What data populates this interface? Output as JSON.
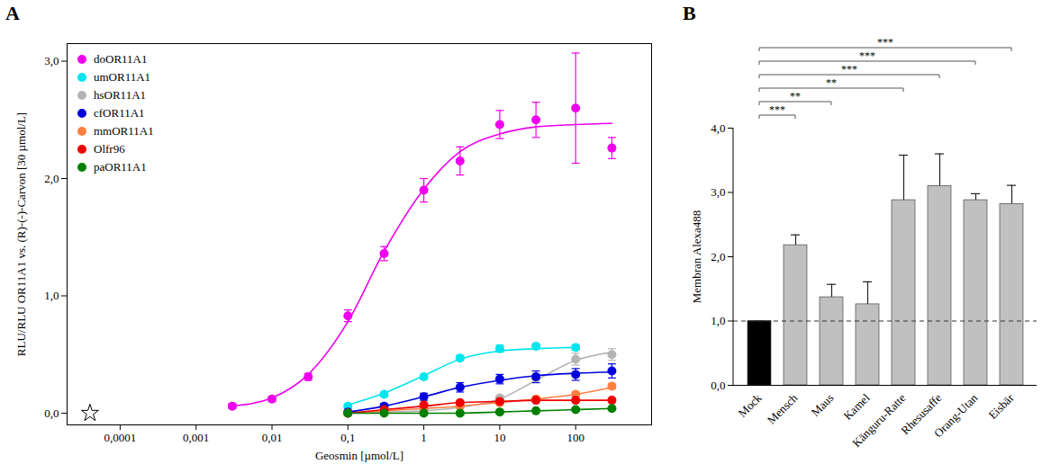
{
  "chart_data": [
    {
      "panel": "A",
      "type": "scatter",
      "line_style": "solid",
      "marker": "circle",
      "x_label": "Geosmin [µmol/L]",
      "y_label": "RLU/RLU OR11A1 vs. (R)-(-)-Carvon [30 µmol/L]",
      "log": "x",
      "grid": false,
      "legend": "top-left",
      "xlim": [
        2e-05,
        1000
      ],
      "xticks": [
        {
          "value": 0.0001,
          "label": "0,0001"
        },
        {
          "value": 0.001,
          "label": "0,001"
        },
        {
          "value": 0.01,
          "label": "0,01"
        },
        {
          "value": 0.1,
          "label": "0,1"
        },
        1,
        10,
        100
      ],
      "ylim": [
        -0.1,
        3.15
      ],
      "yticks": [
        {
          "value": 0,
          "label": "0,0"
        },
        {
          "value": 1,
          "label": "1,0"
        },
        {
          "value": 2,
          "label": "2,0"
        },
        {
          "value": 3,
          "label": "3,0"
        }
      ],
      "control": {
        "x": 4e-05,
        "y": 0,
        "marker": "star"
      },
      "series": [
        {
          "name": "doOR11A1",
          "color": "#ee00ee",
          "x": [
            0.003,
            0.01,
            0.03,
            0.1,
            0.3,
            1,
            3,
            10,
            30,
            100,
            300
          ],
          "values": [
            0.06,
            0.12,
            0.31,
            0.83,
            1.36,
            1.9,
            2.15,
            2.46,
            2.5,
            2.6,
            2.26
          ],
          "errors": [
            0.02,
            0.02,
            0.03,
            0.05,
            0.06,
            0.1,
            0.12,
            0.12,
            0.15,
            0.47,
            0.09
          ],
          "fit": [
            0.06,
            0.13,
            0.33,
            0.78,
            1.38,
            1.91,
            2.23,
            2.38,
            2.44,
            2.46,
            2.47
          ]
        },
        {
          "name": "umOR11A1",
          "color": "#00e5ee",
          "x": [
            0.1,
            0.3,
            1,
            3,
            10,
            30,
            100
          ],
          "values": [
            0.06,
            0.16,
            0.31,
            0.47,
            0.55,
            0.57,
            0.56
          ],
          "errors": [
            0.01,
            0.02,
            0.02,
            0.02,
            0.03,
            0.02,
            0.02
          ],
          "fit": [
            0.07,
            0.17,
            0.32,
            0.46,
            0.53,
            0.55,
            0.56
          ]
        },
        {
          "name": "hsOR11A1",
          "color": "#b4b4b4",
          "x": [
            0.1,
            0.3,
            1,
            3,
            10,
            30,
            100,
            300
          ],
          "values": [
            0.0,
            0.01,
            0.03,
            0.06,
            0.13,
            0.3,
            0.46,
            0.5
          ],
          "errors": [
            0.01,
            0.01,
            0.01,
            0.01,
            0.02,
            0.04,
            0.05,
            0.05
          ],
          "fit": [
            0.0,
            0.01,
            0.02,
            0.05,
            0.12,
            0.28,
            0.45,
            0.52
          ]
        },
        {
          "name": "cfOR11A1",
          "color": "#0000dd",
          "x": [
            0.1,
            0.3,
            1,
            3,
            10,
            30,
            100,
            300
          ],
          "values": [
            0.01,
            0.06,
            0.14,
            0.22,
            0.29,
            0.31,
            0.33,
            0.36
          ],
          "errors": [
            0.01,
            0.02,
            0.03,
            0.04,
            0.04,
            0.05,
            0.05,
            0.06
          ],
          "fit": [
            0.01,
            0.06,
            0.14,
            0.22,
            0.28,
            0.32,
            0.34,
            0.35
          ]
        },
        {
          "name": "mmOR11A1",
          "color": "#ff7f40",
          "x": [
            0.1,
            0.3,
            1,
            3,
            10,
            30,
            100,
            300
          ],
          "values": [
            0.0,
            0.02,
            0.04,
            0.06,
            0.09,
            0.12,
            0.16,
            0.23
          ],
          "errors": [
            0.01,
            0.01,
            0.01,
            0.01,
            0.01,
            0.02,
            0.02,
            0.02
          ],
          "fit": [
            0.0,
            0.02,
            0.04,
            0.06,
            0.09,
            0.12,
            0.16,
            0.22
          ]
        },
        {
          "name": "Olfr96",
          "color": "#ee0000",
          "x": [
            0.1,
            0.3,
            1,
            3,
            10,
            30,
            100,
            300
          ],
          "values": [
            0.0,
            0.03,
            0.07,
            0.09,
            0.1,
            0.11,
            0.11,
            0.11
          ],
          "errors": [
            0.01,
            0.01,
            0.01,
            0.01,
            0.01,
            0.01,
            0.01,
            0.01
          ],
          "fit": [
            0.0,
            0.03,
            0.06,
            0.09,
            0.1,
            0.11,
            0.11,
            0.11
          ]
        },
        {
          "name": "paOR11A1",
          "color": "#008000",
          "x": [
            0.1,
            0.3,
            1,
            3,
            10,
            30,
            100,
            300
          ],
          "values": [
            0.0,
            0.0,
            0.0,
            0.0,
            0.01,
            0.02,
            0.03,
            0.04
          ],
          "errors": [
            0.01,
            0.01,
            0.01,
            0.01,
            0.01,
            0.01,
            0.01,
            0.01
          ],
          "fit": [
            0.0,
            0.0,
            0.0,
            0.0,
            0.01,
            0.02,
            0.03,
            0.04
          ]
        }
      ]
    },
    {
      "panel": "B",
      "type": "bar",
      "y_label": "Membran Alexa488",
      "grid": false,
      "categories": [
        "Mock",
        "Mensch",
        "Maus",
        "Kamel",
        "Känguru-Ratte",
        "Rhesusaffe",
        "Orang-Utan",
        "Eisbär"
      ],
      "values": [
        1.0,
        2.18,
        1.37,
        1.26,
        2.88,
        3.1,
        2.88,
        2.82
      ],
      "errors": [
        0.0,
        0.16,
        0.2,
        0.35,
        0.7,
        0.5,
        0.1,
        0.29
      ],
      "colors": [
        "#000000",
        "#c0c0c0",
        "#c0c0c0",
        "#c0c0c0",
        "#c0c0c0",
        "#c0c0c0",
        "#c0c0c0",
        "#c0c0c0"
      ],
      "ylim": [
        0,
        4.0
      ],
      "yticks": [
        {
          "value": 0,
          "label": "0,0"
        },
        {
          "value": 1,
          "label": "1,0"
        },
        {
          "value": 2,
          "label": "2,0"
        },
        {
          "value": 3,
          "label": "3,0"
        },
        {
          "value": 4,
          "label": "4,0"
        }
      ],
      "reference_line": {
        "value": 1.0,
        "line_style": "dashed"
      },
      "significance": [
        {
          "from": "Mock",
          "to": "Mensch",
          "label": "***"
        },
        {
          "from": "Mock",
          "to": "Maus",
          "label": "**"
        },
        {
          "from": "Mock",
          "to": "Känguru-Ratte",
          "label": "**"
        },
        {
          "from": "Mock",
          "to": "Rhesusaffe",
          "label": "***"
        },
        {
          "from": "Mock",
          "to": "Orang-Utan",
          "label": "***"
        },
        {
          "from": "Mock",
          "to": "Eisbär",
          "label": "***"
        }
      ]
    }
  ]
}
